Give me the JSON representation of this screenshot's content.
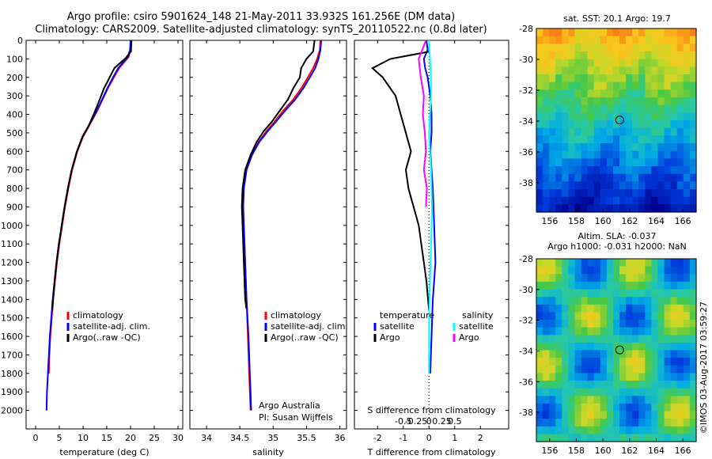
{
  "header": {
    "title_line1": "Argo profile: csiro 5901624_148 21-May-2011 33.932S 161.256E (DM data)",
    "title_line2": "Climatology: CARS2009. Satellite-adjusted climatology: synTS_20110522.nc (0.8d later)"
  },
  "colors": {
    "climatology": "#ff0000",
    "satellite": "#0000ff",
    "argo": "#000000",
    "sal_satellite": "#00ffff",
    "sal_argo": "#ff00ff"
  },
  "chart_data": [
    {
      "id": "temperature",
      "type": "line",
      "xlabel": "temperature (deg C)",
      "ylabel": "",
      "xlim": [
        -2,
        31
      ],
      "ylim": [
        2100,
        0
      ],
      "xticks": [
        0,
        5,
        10,
        15,
        20,
        25,
        30
      ],
      "yticks": [
        0,
        100,
        200,
        300,
        400,
        500,
        600,
        700,
        800,
        900,
        1000,
        1100,
        1200,
        1300,
        1400,
        1500,
        1600,
        1700,
        1800,
        1900,
        2000
      ],
      "legend": [
        "climatology",
        "satellite-adj. clim.",
        "Argo(..raw -QC)"
      ],
      "series": [
        {
          "name": "climatology",
          "color": "#ff0000",
          "x": [
            20.1,
            20.0,
            19.6,
            17.6,
            16.5,
            15.2,
            14.1,
            12.8,
            11.3,
            10.0,
            8.8,
            7.7,
            6.9,
            6.2,
            5.6,
            5.0,
            4.5,
            4.1,
            3.7,
            3.4,
            3.1,
            2.9,
            2.8,
            2.7
          ],
          "y": [
            0,
            50,
            90,
            150,
            200,
            260,
            320,
            390,
            460,
            520,
            600,
            700,
            800,
            900,
            1000,
            1100,
            1200,
            1300,
            1400,
            1500,
            1600,
            1700,
            1800,
            1750
          ]
        },
        {
          "name": "satellite-adj. clim.",
          "color": "#0000ff",
          "x": [
            20.0,
            19.9,
            19.4,
            17.4,
            16.3,
            15.1,
            14.0,
            12.7,
            11.2,
            9.9,
            8.7,
            7.6,
            6.8,
            6.1,
            5.5,
            4.9,
            4.4,
            4.0,
            3.6,
            3.3,
            3.0,
            2.8,
            2.6,
            2.4,
            2.3
          ],
          "y": [
            0,
            50,
            90,
            150,
            200,
            260,
            320,
            390,
            460,
            520,
            600,
            700,
            800,
            900,
            1000,
            1100,
            1200,
            1300,
            1400,
            1500,
            1600,
            1700,
            1800,
            1900,
            2000
          ]
        },
        {
          "name": "Argo(..raw -QC)",
          "color": "#000000",
          "x": [
            20.2,
            20.1,
            19.0,
            16.6,
            15.6,
            14.4,
            13.5,
            12.4,
            11.2,
            9.9,
            8.7,
            7.6,
            6.8,
            6.1,
            5.5,
            4.9,
            4.4,
            4.0,
            3.7,
            3.5
          ],
          "y": [
            0,
            60,
            95,
            150,
            200,
            260,
            320,
            390,
            460,
            520,
            600,
            700,
            800,
            900,
            1000,
            1100,
            1200,
            1300,
            1400,
            1460
          ]
        }
      ]
    },
    {
      "id": "salinity",
      "type": "line",
      "xlabel": "salinity",
      "ylabel": "",
      "xlim": [
        33.75,
        36.1
      ],
      "ylim": [
        2100,
        0
      ],
      "xticks": [
        34,
        34.5,
        35,
        35.5,
        36
      ],
      "legend": [
        "climatology",
        "satellite-adj. clim.",
        "Argo(..raw -QC)"
      ],
      "annotation": [
        "Argo Australia",
        "PI: Susan Wijffels"
      ],
      "series": [
        {
          "name": "climatology",
          "color": "#ff0000",
          "x": [
            35.71,
            35.7,
            35.66,
            35.6,
            35.52,
            35.42,
            35.3,
            35.15,
            35.02,
            34.9,
            34.78,
            34.68,
            34.6,
            34.56,
            34.55,
            34.56,
            34.58,
            34.6,
            34.62,
            34.64,
            34.65,
            34.66
          ],
          "y": [
            0,
            50,
            100,
            150,
            200,
            260,
            320,
            380,
            440,
            490,
            550,
            620,
            700,
            800,
            900,
            1000,
            1200,
            1400,
            1600,
            1800,
            1900,
            2000
          ]
        },
        {
          "name": "satellite-adj. clim.",
          "color": "#0000ff",
          "x": [
            35.72,
            35.71,
            35.68,
            35.63,
            35.55,
            35.45,
            35.33,
            35.18,
            35.04,
            34.92,
            34.79,
            34.68,
            34.6,
            34.56,
            34.55,
            34.56,
            34.58,
            34.6,
            34.63,
            34.65,
            34.66,
            34.67
          ],
          "y": [
            0,
            50,
            100,
            150,
            200,
            260,
            320,
            380,
            440,
            490,
            550,
            620,
            700,
            800,
            900,
            1000,
            1200,
            1400,
            1600,
            1800,
            1900,
            2000
          ]
        },
        {
          "name": "Argo(..raw -QC)",
          "color": "#000000",
          "x": [
            35.62,
            35.6,
            35.5,
            35.42,
            35.4,
            35.3,
            35.22,
            35.1,
            34.98,
            34.86,
            34.75,
            34.66,
            34.58,
            34.54,
            34.53,
            34.54,
            34.56,
            34.58,
            34.6
          ],
          "y": [
            0,
            60,
            100,
            150,
            200,
            260,
            320,
            380,
            440,
            490,
            550,
            620,
            700,
            800,
            900,
            1000,
            1200,
            1400,
            1450
          ]
        }
      ]
    },
    {
      "id": "difference",
      "type": "line",
      "xlabel": "T difference from climatology",
      "x2label": "S difference from climatology",
      "xlim": [
        -2.9,
        3.1
      ],
      "xticks": [
        -2,
        -1,
        0,
        1,
        2
      ],
      "x2ticks": [
        "-0.5",
        "-0.25",
        "0",
        "0.25",
        "0.5"
      ],
      "x2tick_values": [
        -0.5,
        -0.25,
        0,
        0.25,
        0.5
      ],
      "ylim": [
        2100,
        0
      ],
      "legend_titles": [
        "temperature",
        "salinity"
      ],
      "legend": [
        "satellite",
        "Argo",
        "satellite",
        "Argo"
      ],
      "series": [
        {
          "name": "satellite",
          "color": "#0000ff",
          "group": "temperature",
          "x": [
            -0.1,
            -0.05,
            -0.2,
            -0.15,
            -0.05,
            0.05,
            0.1,
            0.1,
            0.05,
            0.1,
            0.15,
            0.2,
            0.25,
            0.2,
            0.15,
            0.1,
            0.05
          ],
          "y": [
            0,
            50,
            100,
            150,
            200,
            300,
            400,
            500,
            600,
            700,
            800,
            1000,
            1200,
            1300,
            1400,
            1600,
            1800
          ]
        },
        {
          "name": "Argo",
          "color": "#000000",
          "group": "temperature",
          "x": [
            0.05,
            -1.5,
            -2.2,
            -1.8,
            -1.3,
            -1.1,
            -0.9,
            -0.7,
            -0.9,
            -0.8,
            -0.6,
            -0.4,
            -0.3,
            -0.2,
            -0.1,
            0.0
          ],
          "y": [
            60,
            100,
            150,
            200,
            300,
            400,
            500,
            600,
            700,
            800,
            900,
            1000,
            1100,
            1200,
            1300,
            1460
          ]
        },
        {
          "name": "satellite",
          "color": "#00ffff",
          "group": "salinity",
          "x": [
            0.0,
            0.01,
            0.02,
            0.02,
            0.01,
            0.0,
            0.01,
            0.02,
            0.03,
            0.02,
            0.01,
            0.0,
            0.0
          ],
          "y": [
            0,
            100,
            200,
            300,
            400,
            500,
            600,
            700,
            900,
            1100,
            1300,
            1500,
            1800
          ]
        },
        {
          "name": "Argo",
          "color": "#ff00ff",
          "group": "salinity",
          "x": [
            -0.03,
            -0.1,
            -0.08,
            -0.05,
            -0.06,
            -0.04,
            -0.03,
            -0.05,
            -0.02,
            -0.03
          ],
          "y": [
            0,
            100,
            200,
            300,
            400,
            500,
            600,
            700,
            800,
            900
          ]
        }
      ]
    }
  ],
  "maps": [
    {
      "id": "sst-map",
      "title": "sat. SST: 20.1   Argo: 19.7",
      "xlim": [
        155,
        167
      ],
      "ylim": [
        -39.9,
        -28
      ],
      "xticks": [
        156,
        158,
        160,
        162,
        164,
        166
      ],
      "yticks": [
        -28,
        -30,
        -32,
        -34,
        -36,
        -38
      ],
      "marker": {
        "lon": 161.256,
        "lat": -33.932
      }
    },
    {
      "id": "sla-map",
      "title_line1": "Altim. SLA: -0.037",
      "title_line2": "Argo h1000: -0.031  h2000: NaN",
      "xlim": [
        155,
        167
      ],
      "ylim": [
        -39.9,
        -28
      ],
      "xticks": [
        156,
        158,
        160,
        162,
        164,
        166
      ],
      "yticks": [
        -28,
        -30,
        -32,
        -34,
        -36,
        -38
      ],
      "marker": {
        "lon": 161.256,
        "lat": -33.932
      }
    }
  ],
  "footer": {
    "stamp": "©IMOS 03-Aug-2017 03:59:27"
  }
}
